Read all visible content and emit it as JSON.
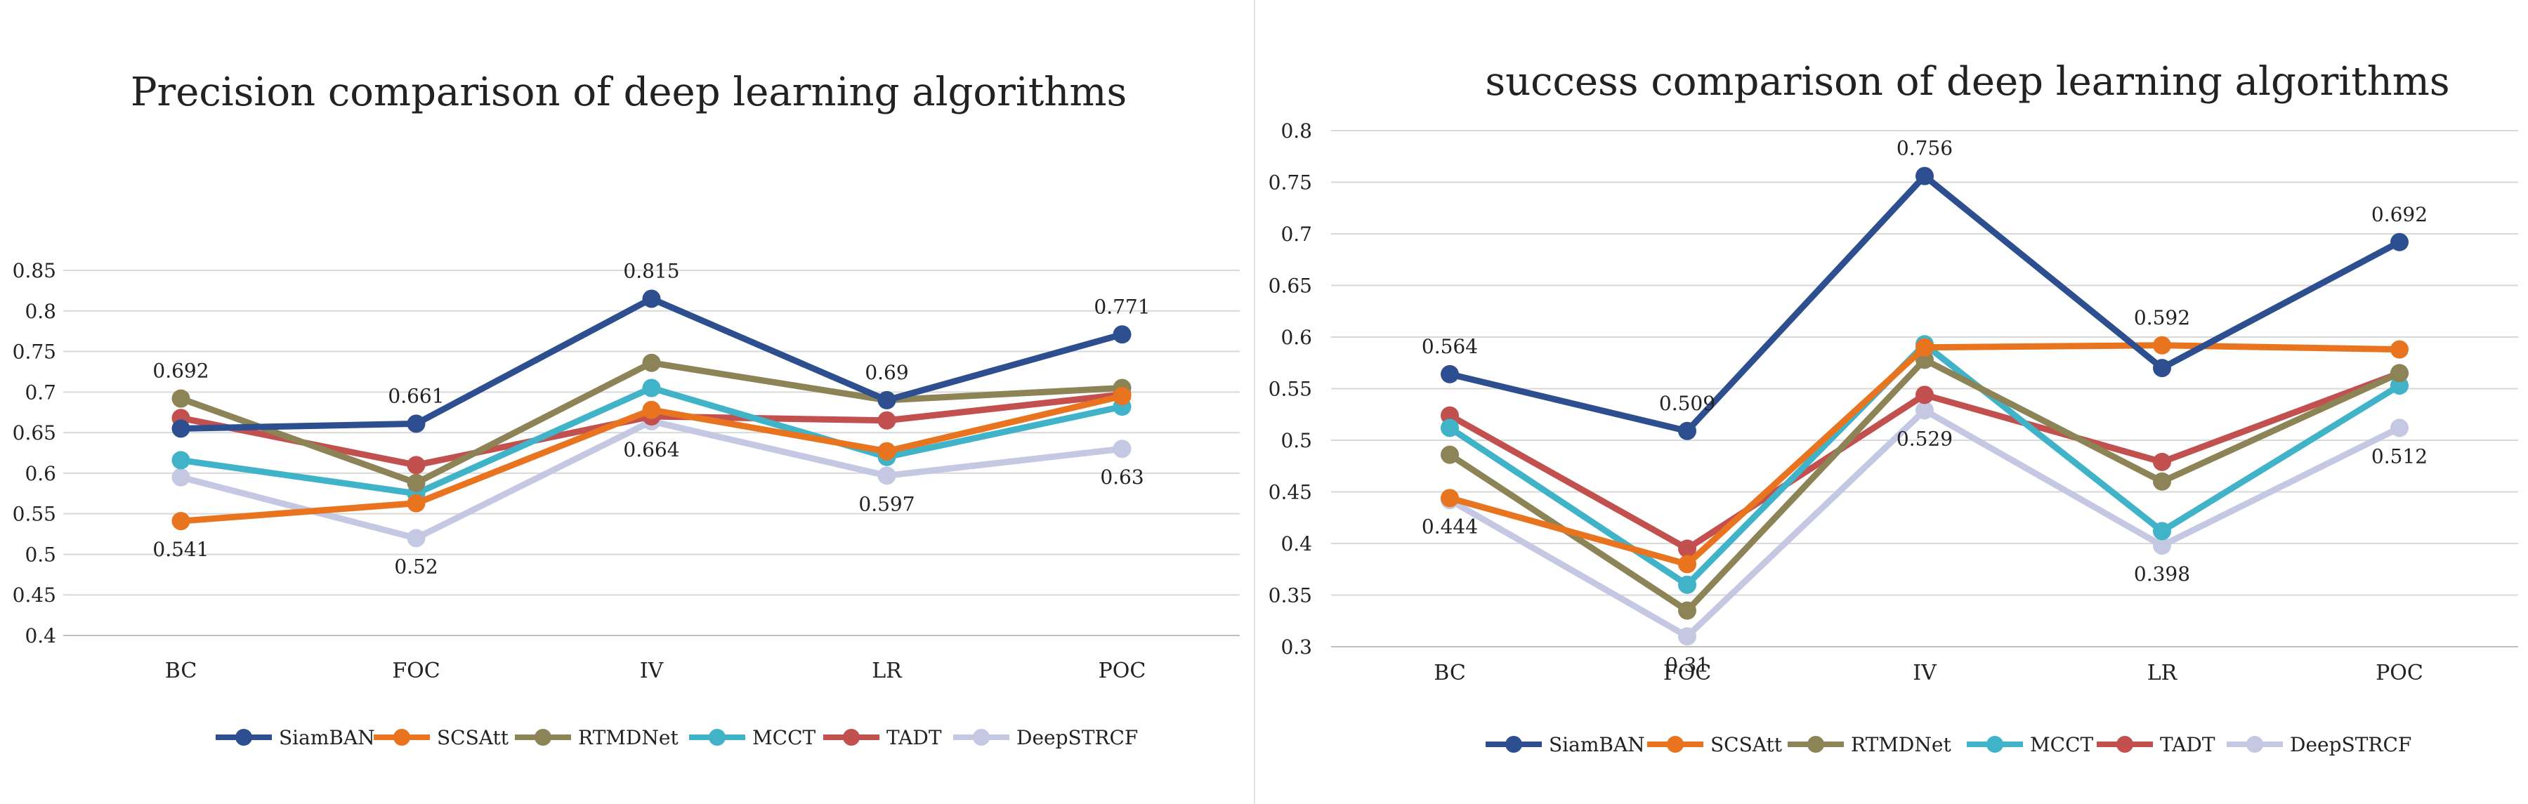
{
  "colors": {
    "SiamBAN": "#2e4f8f",
    "SCSAtt": "#e8741f",
    "RTMDNet": "#8c8456",
    "MCCT": "#40b3c9",
    "TADT": "#c2504f",
    "DeepSTRCF": "#c4c8e3"
  },
  "chart_data": [
    {
      "type": "line",
      "title": "Precision comparison of deep learning algorithms",
      "categories": [
        "BC",
        "FOC",
        "IV",
        "LR",
        "POC"
      ],
      "ylim": [
        0.4,
        0.85
      ],
      "yticks": [
        "0.4",
        "0.45",
        "0.5",
        "0.55",
        "0.6",
        "0.65",
        "0.7",
        "0.75",
        "0.8",
        "0.85"
      ],
      "xlabel": "",
      "ylabel": "",
      "grid": true,
      "legend": "bottom",
      "series": [
        {
          "name": "SiamBAN",
          "values": [
            0.655,
            0.661,
            0.815,
            0.69,
            0.771
          ]
        },
        {
          "name": "SCSAtt",
          "values": [
            0.541,
            0.563,
            0.678,
            0.627,
            0.695
          ]
        },
        {
          "name": "RTMDNet",
          "values": [
            0.692,
            0.588,
            0.736,
            0.69,
            0.705
          ]
        },
        {
          "name": "MCCT",
          "values": [
            0.616,
            0.575,
            0.705,
            0.62,
            0.682
          ]
        },
        {
          "name": "TADT",
          "values": [
            0.668,
            0.61,
            0.67,
            0.665,
            0.697
          ]
        },
        {
          "name": "DeepSTRCF",
          "values": [
            0.595,
            0.52,
            0.664,
            0.597,
            0.63
          ]
        }
      ],
      "annotations": [
        {
          "series": "RTMDNet",
          "index": 0,
          "text": "0.692",
          "pos": "above"
        },
        {
          "series": "SCSAtt",
          "index": 0,
          "text": "0.541",
          "pos": "below"
        },
        {
          "series": "SiamBAN",
          "index": 1,
          "text": "0.661",
          "pos": "above"
        },
        {
          "series": "DeepSTRCF",
          "index": 1,
          "text": "0.52",
          "pos": "below"
        },
        {
          "series": "SiamBAN",
          "index": 2,
          "text": "0.815",
          "pos": "above"
        },
        {
          "series": "DeepSTRCF",
          "index": 2,
          "text": "0.664",
          "pos": "below"
        },
        {
          "series": "SiamBAN",
          "index": 3,
          "text": "0.69",
          "pos": "above"
        },
        {
          "series": "DeepSTRCF",
          "index": 3,
          "text": "0.597",
          "pos": "below"
        },
        {
          "series": "SiamBAN",
          "index": 4,
          "text": "0.771",
          "pos": "above"
        },
        {
          "series": "DeepSTRCF",
          "index": 4,
          "text": "0.63",
          "pos": "below"
        }
      ]
    },
    {
      "type": "line",
      "title": "success comparison of deep learning algorithms",
      "categories": [
        "BC",
        "FOC",
        "IV",
        "LR",
        "POC"
      ],
      "ylim": [
        0.3,
        0.8
      ],
      "yticks": [
        "0.3",
        "0.35",
        "0.4",
        "0.45",
        "0.5",
        "0.55",
        "0.6",
        "0.65",
        "0.7",
        "0.75",
        "0.8"
      ],
      "xlabel": "",
      "ylabel": "",
      "grid": true,
      "legend": "bottom",
      "series": [
        {
          "name": "SiamBAN",
          "values": [
            0.564,
            0.509,
            0.756,
            0.57,
            0.692
          ]
        },
        {
          "name": "SCSAtt",
          "values": [
            0.444,
            0.38,
            0.59,
            0.592,
            0.588
          ]
        },
        {
          "name": "RTMDNet",
          "values": [
            0.486,
            0.335,
            0.578,
            0.46,
            0.565
          ]
        },
        {
          "name": "MCCT",
          "values": [
            0.512,
            0.36,
            0.593,
            0.412,
            0.553
          ]
        },
        {
          "name": "TADT",
          "values": [
            0.524,
            0.395,
            0.544,
            0.479,
            0.565
          ]
        },
        {
          "name": "DeepSTRCF",
          "values": [
            0.442,
            0.31,
            0.529,
            0.398,
            0.512
          ]
        }
      ],
      "annotations": [
        {
          "series": "SiamBAN",
          "index": 0,
          "text": "0.564",
          "pos": "above"
        },
        {
          "series": "SCSAtt",
          "index": 0,
          "text": "0.444",
          "pos": "below"
        },
        {
          "series": "SiamBAN",
          "index": 1,
          "text": "0.509",
          "pos": "above"
        },
        {
          "series": "DeepSTRCF",
          "index": 1,
          "text": "0.31",
          "pos": "below"
        },
        {
          "series": "SiamBAN",
          "index": 2,
          "text": "0.756",
          "pos": "above"
        },
        {
          "series": "DeepSTRCF",
          "index": 2,
          "text": "0.529",
          "pos": "below"
        },
        {
          "series": "SCSAtt",
          "index": 3,
          "text": "0.592",
          "pos": "above"
        },
        {
          "series": "DeepSTRCF",
          "index": 3,
          "text": "0.398",
          "pos": "below"
        },
        {
          "series": "SiamBAN",
          "index": 4,
          "text": "0.692",
          "pos": "above"
        },
        {
          "series": "DeepSTRCF",
          "index": 4,
          "text": "0.512",
          "pos": "below"
        }
      ]
    }
  ]
}
